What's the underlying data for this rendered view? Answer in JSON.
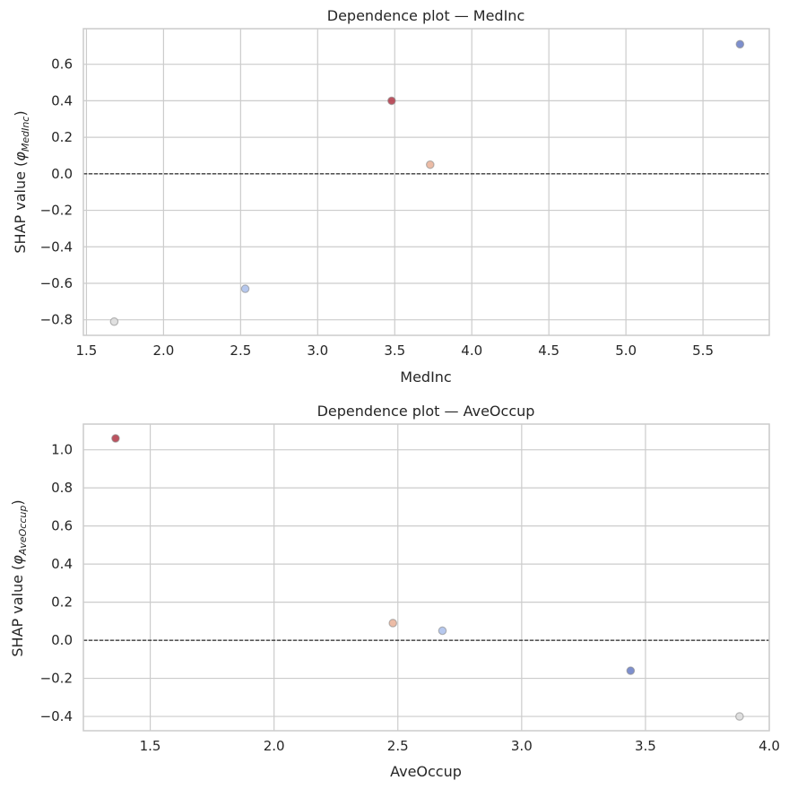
{
  "chart_data": [
    {
      "type": "scatter",
      "title": "Dependence plot — MedInc",
      "xlabel": "MedInc",
      "ylabel_main": "SHAP value (",
      "ylabel_phi": "φ",
      "ylabel_sub": "MedInc",
      "ylabel_close": ")",
      "xlim": [
        1.48,
        5.93
      ],
      "ylim": [
        -0.885,
        0.795
      ],
      "xticks": [
        1.5,
        2.0,
        2.5,
        3.0,
        3.5,
        4.0,
        4.5,
        5.0,
        5.5
      ],
      "xtick_labels": [
        "1.5",
        "2.0",
        "2.5",
        "3.0",
        "3.5",
        "4.0",
        "4.5",
        "5.0",
        "5.5"
      ],
      "yticks": [
        -0.8,
        -0.6,
        -0.4,
        -0.2,
        0.0,
        0.2,
        0.4,
        0.6
      ],
      "ytick_labels": [
        "−0.8",
        "−0.6",
        "−0.4",
        "−0.2",
        "0.0",
        "0.2",
        "0.4",
        "0.6"
      ],
      "grid": true,
      "zero_line": true,
      "points": [
        {
          "x": 1.68,
          "y": -0.81,
          "color": "#dddddd"
        },
        {
          "x": 2.53,
          "y": -0.63,
          "color": "#aec2ec"
        },
        {
          "x": 3.48,
          "y": 0.4,
          "color": "#b5404f"
        },
        {
          "x": 3.73,
          "y": 0.05,
          "color": "#eab59c"
        },
        {
          "x": 5.74,
          "y": 0.71,
          "color": "#6f83c9"
        }
      ]
    },
    {
      "type": "scatter",
      "title": "Dependence plot — AveOccup",
      "xlabel": "AveOccup",
      "ylabel_main": "SHAP value (",
      "ylabel_phi": "φ",
      "ylabel_sub": "AveOccup",
      "ylabel_close": ")",
      "xlim": [
        1.23,
        4.0
      ],
      "ylim": [
        -0.475,
        1.135
      ],
      "xticks": [
        1.5,
        2.0,
        2.5,
        3.0,
        3.5,
        4.0
      ],
      "xtick_labels": [
        "1.5",
        "2.0",
        "2.5",
        "3.0",
        "3.5",
        "4.0"
      ],
      "yticks": [
        -0.4,
        -0.2,
        0.0,
        0.2,
        0.4,
        0.6,
        0.8,
        1.0
      ],
      "ytick_labels": [
        "−0.4",
        "−0.2",
        "0.0",
        "0.2",
        "0.4",
        "0.6",
        "0.8",
        "1.0"
      ],
      "grid": true,
      "zero_line": true,
      "points": [
        {
          "x": 1.36,
          "y": 1.06,
          "color": "#b5404f"
        },
        {
          "x": 2.48,
          "y": 0.09,
          "color": "#eab59c"
        },
        {
          "x": 2.68,
          "y": 0.05,
          "color": "#aec2ec"
        },
        {
          "x": 3.44,
          "y": -0.16,
          "color": "#6f83c9"
        },
        {
          "x": 3.88,
          "y": -0.4,
          "color": "#dddddd"
        }
      ]
    }
  ]
}
